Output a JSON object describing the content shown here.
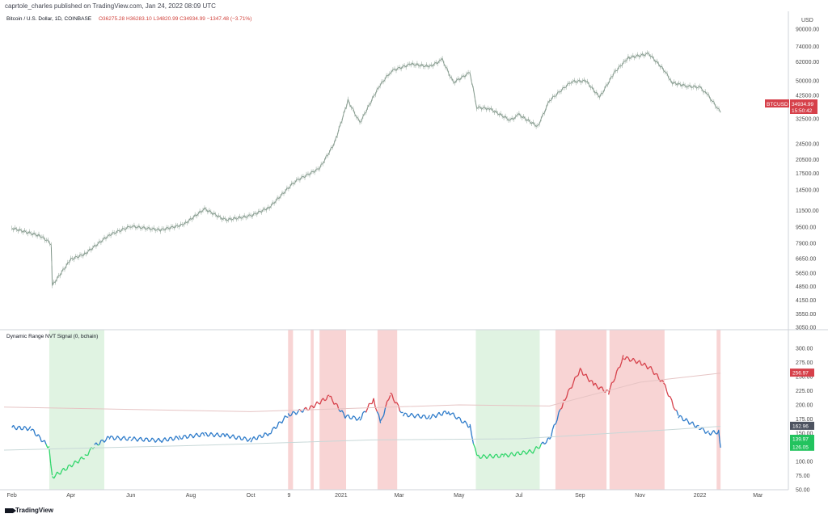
{
  "header": {
    "text": "caprtole_charles published on TradingView.com, Jan 24, 2022 08:09 UTC"
  },
  "price_legend": {
    "symbol": "Bitcoin / U.S. Dollar, 1D, COINBASE",
    "values": "O36275.28  H36283.10  L34820.99  C34934.99  −1347.48 (−3.71%)"
  },
  "price_axis": {
    "currency": "USD",
    "ticks": [
      "90000.00",
      "74000.00",
      "62000.00",
      "50000.00",
      "42500.00",
      "32500.00",
      "24500.00",
      "20500.00",
      "17500.00",
      "14500.00",
      "11500.00",
      "9500.00",
      "7900.00",
      "6650.00",
      "5650.00",
      "4850.00",
      "4150.00",
      "3550.00",
      "3050.00"
    ],
    "last_symbol": "BTCUSD",
    "last_price": "34934.99",
    "countdown": "15:50:42"
  },
  "indicator_legend": {
    "text": "Dynamic Range NVT Signal (0, bchain)"
  },
  "indicator_axis": {
    "ticks": [
      "300.00",
      "275.00",
      "250.00",
      "225.00",
      "200.00",
      "175.00",
      "150.00",
      "125.00",
      "100.00",
      "75.00",
      "50.00"
    ],
    "badges": [
      "256.97",
      "162.96",
      "139.97",
      "126.05"
    ]
  },
  "time_axis": {
    "labels": [
      "Feb",
      "Apr",
      "Jun",
      "Aug",
      "Oct",
      "9",
      "2021",
      "Mar",
      "May",
      "Jul",
      "Sep",
      "Nov",
      "2022",
      "Mar"
    ]
  },
  "footer": {
    "brand": "TradingView"
  },
  "colors": {
    "nvt_normal": "#2a79c9",
    "nvt_high": "#d6404a",
    "nvt_low": "#2fd66a",
    "zone_red": "#f6c5c5",
    "zone_green": "#d6efd8",
    "price": "#7f9588"
  },
  "chart_data": [
    {
      "type": "line",
      "title": "Bitcoin / U.S. Dollar, 1D, COINBASE",
      "scale": "log",
      "ylim": [
        3050,
        90000
      ],
      "x": [
        "2020-02-01",
        "2020-03-01",
        "2020-03-12",
        "2020-03-13",
        "2020-04-01",
        "2020-04-15",
        "2020-05-10",
        "2020-06-01",
        "2020-07-01",
        "2020-07-25",
        "2020-08-15",
        "2020-09-05",
        "2020-10-01",
        "2020-10-20",
        "2020-11-15",
        "2020-12-10",
        "2020-12-25",
        "2021-01-08",
        "2021-01-20",
        "2021-02-08",
        "2021-02-21",
        "2021-03-13",
        "2021-04-01",
        "2021-04-14",
        "2021-04-25",
        "2021-05-12",
        "2021-05-19",
        "2021-06-01",
        "2021-06-22",
        "2021-07-01",
        "2021-07-20",
        "2021-08-01",
        "2021-08-23",
        "2021-09-07",
        "2021-09-21",
        "2021-10-06",
        "2021-10-20",
        "2021-11-10",
        "2021-11-25",
        "2021-12-04",
        "2021-12-20",
        "2022-01-01",
        "2022-01-10",
        "2022-01-22"
      ],
      "values": [
        9400,
        8600,
        7900,
        4900,
        6600,
        7000,
        8700,
        9600,
        9200,
        9800,
        11700,
        10300,
        10800,
        11900,
        16000,
        18500,
        24500,
        40000,
        31000,
        46500,
        56000,
        60500,
        58800,
        63500,
        49000,
        55000,
        37000,
        36500,
        32000,
        34000,
        29800,
        40000,
        49500,
        50000,
        41500,
        55000,
        65000,
        68000,
        57000,
        49000,
        47000,
        46500,
        42000,
        34934.99
      ]
    },
    {
      "type": "line",
      "title": "Dynamic Range NVT Signal (0, bchain)",
      "ylim": [
        50,
        310
      ],
      "x": [
        "2020-02-01",
        "2020-02-20",
        "2020-03-10",
        "2020-03-13",
        "2020-04-15",
        "2020-04-25",
        "2020-05-10",
        "2020-06-01",
        "2020-07-01",
        "2020-07-20",
        "2020-08-15",
        "2020-09-05",
        "2020-10-01",
        "2020-10-20",
        "2020-11-08",
        "2020-12-01",
        "2020-12-20",
        "2021-01-05",
        "2021-01-20",
        "2021-02-03",
        "2021-02-10",
        "2021-02-20",
        "2021-03-05",
        "2021-04-01",
        "2021-04-20",
        "2021-05-12",
        "2021-05-19",
        "2021-06-15",
        "2021-07-15",
        "2021-08-01",
        "2021-08-15",
        "2021-09-01",
        "2021-09-15",
        "2021-09-30",
        "2021-10-15",
        "2021-11-01",
        "2021-11-12",
        "2021-11-25",
        "2021-12-10",
        "2021-12-31",
        "2022-01-10",
        "2022-01-20",
        "2022-01-22"
      ],
      "values": [
        160,
        158,
        125,
        72,
        108,
        128,
        142,
        140,
        137,
        142,
        148,
        146,
        138,
        150,
        182,
        195,
        215,
        180,
        175,
        210,
        168,
        220,
        183,
        178,
        188,
        162,
        108,
        110,
        118,
        140,
        205,
        262,
        236,
        222,
        284,
        275,
        264,
        238,
        180,
        160,
        150,
        152,
        128
      ],
      "series_levels": {
        "low": 130,
        "high": 190
      },
      "bands": [
        {
          "x": [
            "2020-03-10",
            "2020-05-05"
          ],
          "color": "green"
        },
        {
          "x": [
            "2020-11-08",
            "2020-11-13"
          ],
          "color": "red"
        },
        {
          "x": [
            "2020-12-01",
            "2020-12-04"
          ],
          "color": "red"
        },
        {
          "x": [
            "2020-12-10",
            "2021-01-06"
          ],
          "color": "red"
        },
        {
          "x": [
            "2021-02-07",
            "2021-02-27"
          ],
          "color": "red"
        },
        {
          "x": [
            "2021-05-18",
            "2021-07-22"
          ],
          "color": "green"
        },
        {
          "x": [
            "2021-08-07",
            "2021-09-28"
          ],
          "color": "red"
        },
        {
          "x": [
            "2021-10-01",
            "2021-11-26"
          ],
          "color": "red"
        },
        {
          "x": [
            "2022-01-18",
            "2022-01-22"
          ],
          "color": "red"
        }
      ]
    }
  ]
}
